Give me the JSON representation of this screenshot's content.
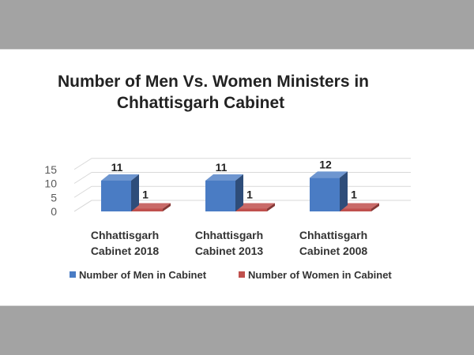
{
  "chart_data": {
    "type": "bar",
    "title_lines": [
      "Number of Men Vs. Women Ministers in",
      "Chhattisgarh Cabinet"
    ],
    "categories": [
      [
        "Chhattisgarh",
        "Cabinet 2018"
      ],
      [
        "Chhattisgarh",
        "Cabinet 2013"
      ],
      [
        "Chhattisgarh",
        "Cabinet 2008"
      ]
    ],
    "series": [
      {
        "name": "Number of Men in Cabinet",
        "values": [
          11,
          11,
          12
        ],
        "color": "#4a7cc4"
      },
      {
        "name": "Number of Women in Cabinet",
        "values": [
          1,
          1,
          1
        ],
        "color": "#c0504d"
      }
    ],
    "yticks": [
      0,
      5,
      10,
      15
    ],
    "ylim": [
      0,
      15
    ],
    "grid": true,
    "legend_position": "bottom",
    "style": "3d-column"
  }
}
